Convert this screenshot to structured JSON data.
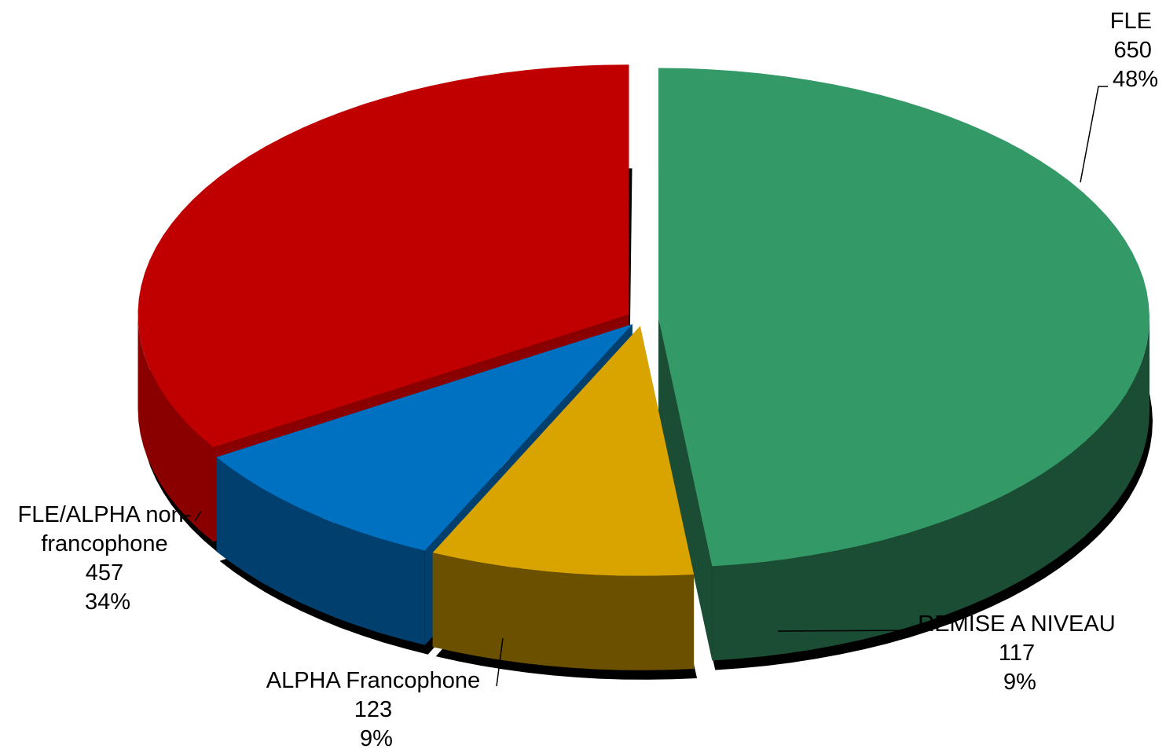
{
  "chart_data": {
    "type": "pie",
    "title": "",
    "slices": [
      {
        "name": "FLE",
        "value": 650,
        "percent": "48%",
        "color": "#339966",
        "side_color": "#1a4d33"
      },
      {
        "name": "REMISE A NIVEAU",
        "value": 117,
        "percent": "9%",
        "color": "#d9a400",
        "side_color": "#6b5000"
      },
      {
        "name": "ALPHA Francophone",
        "value": 123,
        "percent": "9%",
        "color": "#0070c0",
        "side_color": "#003f6e"
      },
      {
        "name": "FLE/ALPHA non-francophone",
        "value": 457,
        "percent": "34%",
        "color": "#c00000",
        "side_color": "#8a0000"
      }
    ],
    "labels": [
      {
        "lines": [
          "FLE",
          "650",
          "48%"
        ]
      },
      {
        "lines": [
          "REMISE A NIVEAU",
          "117",
          "9%"
        ]
      },
      {
        "lines": [
          "ALPHA Francophone",
          "123",
          "9%"
        ]
      },
      {
        "lines": [
          "FLE/ALPHA non-",
          "francophone",
          "457",
          "34%"
        ]
      }
    ],
    "style": "3d-exploded",
    "legend": "none"
  }
}
